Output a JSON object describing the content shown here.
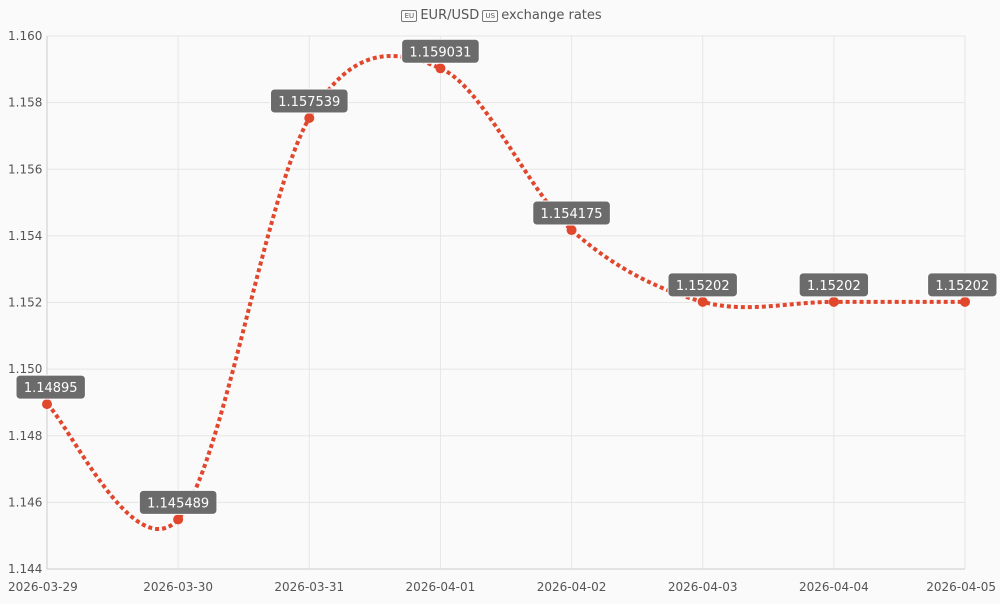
{
  "colors": {
    "series": "#e0472c",
    "label_bg": "#6b6b6b",
    "label_text": "#ffffff",
    "grid": "#e6e6e6",
    "axis_text": "#555555"
  },
  "title": {
    "flag_from": "EU",
    "pair": "EUR/USD",
    "flag_to": "US",
    "suffix": "exchange rates"
  },
  "chart_data": {
    "type": "line",
    "title": "EUR/USD exchange rates",
    "xlabel": "",
    "ylabel": "",
    "x": [
      "2026-03-29",
      "2026-03-30",
      "2026-03-31",
      "2026-04-01",
      "2026-04-02",
      "2026-04-03",
      "2026-04-04",
      "2026-04-05"
    ],
    "y_ticks": [
      "1.144",
      "1.146",
      "1.148",
      "1.150",
      "1.152",
      "1.154",
      "1.156",
      "1.158",
      "1.160"
    ],
    "ylim": [
      1.144,
      1.16
    ],
    "series": [
      {
        "values": [
          1.14895,
          1.145489,
          1.157539,
          1.159031,
          1.154175,
          1.15202,
          1.15202,
          1.15202
        ],
        "labels": [
          "1.14895",
          "1.145489",
          "1.157539",
          "1.159031",
          "1.154175",
          "1.15202",
          "1.15202",
          "1.15202"
        ],
        "style": "dotted",
        "smooth": true
      }
    ],
    "grid": true,
    "legend": "none"
  }
}
